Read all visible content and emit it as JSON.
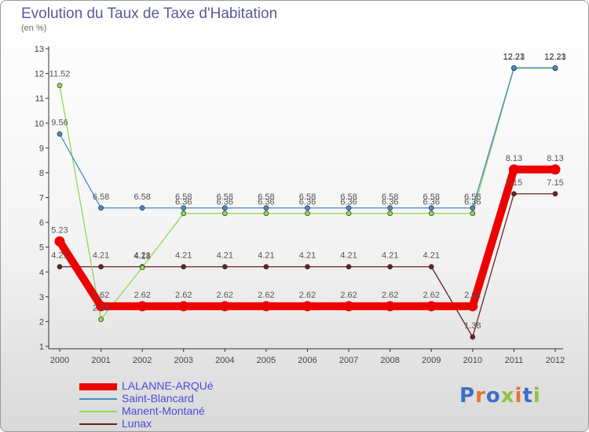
{
  "title": "Evolution du Taux de Taxe d'Habitation",
  "subtitle": "(en %)",
  "logo": {
    "text": "Proxiti",
    "colors": [
      "#3d6fc9",
      "#e8742c",
      "#3d6fc9",
      "#8cc63f",
      "#e8742c",
      "#3d6fc9",
      "#8cc63f"
    ]
  },
  "chart_data": {
    "type": "line",
    "title": "Evolution du Taux de Taxe d'Habitation",
    "ylabel": "(en %)",
    "x": [
      "2000",
      "2001",
      "2002",
      "2003",
      "2004",
      "2005",
      "2006",
      "2007",
      "2008",
      "2009",
      "2010",
      "2011",
      "2012"
    ],
    "ylim": [
      1,
      13
    ],
    "yticks": [
      1,
      2,
      3,
      4,
      5,
      6,
      7,
      8,
      9,
      10,
      11,
      12,
      13
    ],
    "grid": false,
    "legend_position": "bottom-left",
    "series": [
      {
        "name": "LALANNE-ARQUé",
        "color": "#ee0000",
        "values": [
          5.23,
          2.62,
          2.62,
          2.62,
          2.62,
          2.62,
          2.62,
          2.62,
          2.62,
          2.62,
          2.62,
          8.13,
          8.13
        ],
        "labels": [
          "5.23",
          "2.62",
          "2.62",
          "2.62",
          "2.62",
          "2.62",
          "2.62",
          "2.62",
          "2.62",
          "2.62",
          "2.62",
          "8.13",
          "8.13"
        ]
      },
      {
        "name": "Saint-Blancard",
        "color": "#4a88c7",
        "values": [
          9.56,
          6.58,
          6.58,
          6.58,
          6.58,
          6.58,
          6.58,
          6.58,
          6.58,
          6.58,
          6.58,
          12.23,
          12.23
        ],
        "labels": [
          "9.56",
          "6.58",
          "6.58",
          "6.58",
          "6.58",
          "6.58",
          "6.58",
          "6.58",
          "6.58",
          "6.58",
          "6.58",
          "12.23",
          "12.23"
        ]
      },
      {
        "name": "Manent-Montané",
        "color": "#8fd94e",
        "values": [
          11.52,
          2.09,
          4.18,
          6.36,
          6.36,
          6.36,
          6.36,
          6.36,
          6.36,
          6.36,
          6.36,
          12.21,
          12.21
        ],
        "labels": [
          "11.52",
          "2.09",
          "4.18",
          "6.36",
          "6.36",
          "6.36",
          "6.36",
          "6.36",
          "6.36",
          "6.36",
          "6.36",
          "12.21",
          "12.21"
        ]
      },
      {
        "name": "Lunax",
        "color": "#6b1f24",
        "values": [
          4.21,
          4.21,
          4.21,
          4.21,
          4.21,
          4.21,
          4.21,
          4.21,
          4.21,
          4.21,
          1.38,
          7.15,
          7.15
        ],
        "labels": [
          "4.21",
          "4.21",
          "4.21",
          "4.21",
          "4.21",
          "4.21",
          "4.21",
          "4.21",
          "4.21",
          "4.21",
          "1.38",
          "7.15",
          "7.15"
        ]
      }
    ]
  }
}
